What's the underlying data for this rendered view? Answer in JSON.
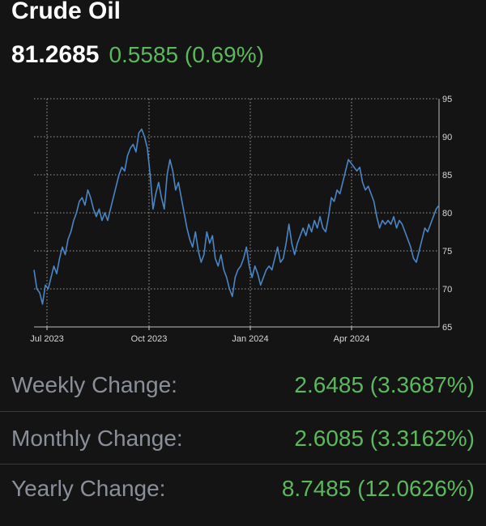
{
  "header": {
    "title": "Crude Oil",
    "price": "81.2685",
    "change": "0.5585 (0.69%)"
  },
  "colors": {
    "background": "#141414",
    "line": "#4a86c5",
    "grid": "#ffffff",
    "positive": "#5cb85c",
    "label_gray": "#8a8f9a"
  },
  "chart_data": {
    "type": "line",
    "title": "",
    "xlabel": "",
    "ylabel": "",
    "x_ticks": [
      "Jul 2023",
      "Oct 2023",
      "Jan 2024",
      "Apr 2024"
    ],
    "y_ticks": [
      65,
      70,
      75,
      80,
      85,
      90,
      95
    ],
    "ylim": [
      65,
      95
    ],
    "grid": true,
    "y_axis_side": "right",
    "series": [
      {
        "values": [
          72.5,
          70.0,
          69.5,
          68.0,
          70.5,
          70.0,
          71.5,
          73.0,
          72.0,
          74.0,
          75.5,
          74.5,
          76.5,
          77.5,
          79.0,
          80.0,
          81.5,
          82.0,
          81.0,
          83.0,
          82.0,
          80.5,
          79.5,
          80.5,
          79.0,
          80.0,
          79.0,
          80.5,
          82.0,
          83.5,
          85.0,
          86.0,
          85.5,
          87.5,
          88.5,
          89.0,
          88.0,
          90.5,
          91.0,
          90.0,
          88.5,
          85.0,
          80.5,
          82.5,
          84.0,
          82.0,
          80.5,
          85.0,
          87.0,
          85.5,
          83.0,
          84.0,
          82.0,
          80.0,
          78.0,
          76.5,
          75.5,
          77.5,
          75.0,
          73.5,
          74.5,
          77.5,
          76.0,
          77.0,
          74.0,
          73.0,
          74.5,
          72.5,
          71.5,
          70.0,
          69.0,
          71.5,
          72.5,
          73.0,
          74.0,
          75.5,
          73.0,
          71.5,
          73.0,
          72.0,
          70.5,
          71.5,
          72.5,
          73.0,
          72.5,
          74.0,
          75.5,
          73.5,
          74.0,
          76.0,
          78.5,
          76.0,
          74.5,
          76.0,
          77.0,
          78.0,
          77.0,
          78.5,
          77.5,
          79.0,
          78.0,
          79.5,
          78.0,
          77.5,
          79.5,
          82.0,
          81.5,
          83.0,
          82.5,
          84.0,
          85.5,
          87.0,
          86.5,
          86.0,
          85.5,
          86.0,
          84.0,
          83.0,
          83.5,
          82.5,
          81.5,
          79.5,
          78.0,
          79.0,
          78.5,
          79.0,
          78.5,
          79.5,
          78.0,
          79.0,
          78.5,
          77.5,
          76.5,
          75.5,
          74.0,
          73.5,
          75.0,
          76.5,
          78.0,
          77.5,
          78.5,
          79.5,
          80.5,
          81.0
        ]
      }
    ]
  },
  "stats": [
    {
      "label": "Weekly Change:",
      "value": "2.6485 (3.3687%)"
    },
    {
      "label": "Monthly Change:",
      "value": "2.6085 (3.3162%)"
    },
    {
      "label": "Yearly Change:",
      "value": "8.7485 (12.0626%)"
    }
  ]
}
